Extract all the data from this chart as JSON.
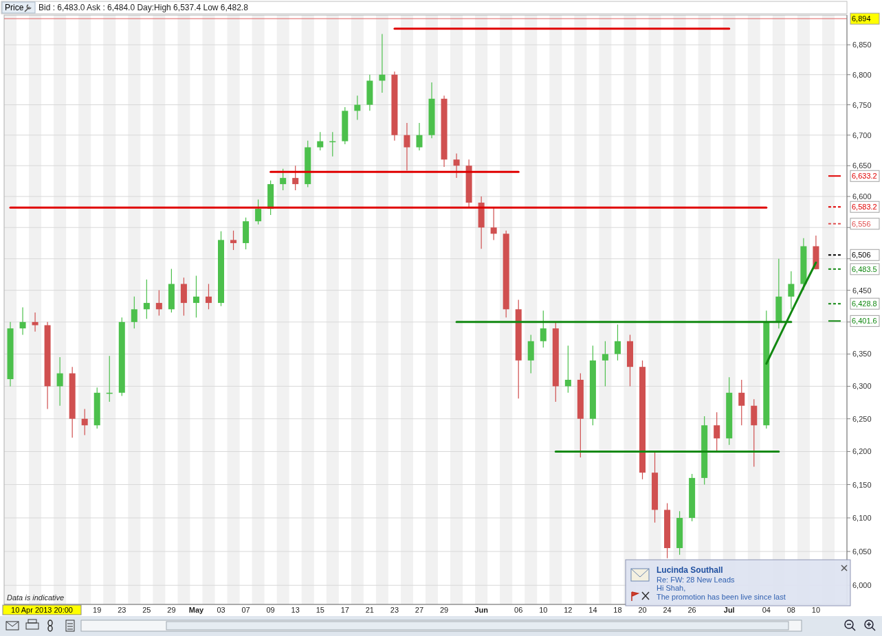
{
  "chart_data": {
    "type": "candlestick",
    "annotations": [
      "Price",
      "Bid : 6,483.0 Ask : 6,484.0 Day:High 6,537.4 Low 6,482.8",
      "Data is indicative",
      "Lucinda Southall",
      "Re: FW: 28 New Leads",
      "Hi Shah,",
      "The promotion has been live since last",
      "10 Apr 2013 20:00",
      "6,633.2",
      "6,583.2",
      "6,556",
      "6,506",
      "6,483.5",
      "6,428.8",
      "6,401.6"
    ],
    "log": true,
    "ylim": [
      5972,
      6900
    ],
    "categories": [
      null,
      null,
      null,
      null,
      null,
      null,
      null,
      "19",
      null,
      "23",
      null,
      "25",
      null,
      "29",
      null,
      "May",
      null,
      "03",
      null,
      "07",
      null,
      "09",
      null,
      "13",
      null,
      "15",
      null,
      "17",
      null,
      "21",
      null,
      "23",
      null,
      "27",
      null,
      "29",
      null,
      null,
      "Jun",
      null,
      null,
      "06",
      null,
      "10",
      null,
      "12",
      null,
      "14",
      null,
      "18",
      null,
      "20",
      null,
      "24",
      null,
      "26",
      null,
      null,
      "Jul",
      null,
      null,
      "04",
      null,
      "08",
      null,
      "10",
      null,
      null
    ],
    "yticks": [
      {
        "value": 6000,
        "label": "6,000"
      },
      {
        "value": 6050,
        "label": "6,050"
      },
      {
        "value": 6100,
        "label": "6,100"
      },
      {
        "value": 6150,
        "label": "6,150"
      },
      {
        "value": 6200,
        "label": "6,200"
      },
      {
        "value": 6250,
        "label": "6,250"
      },
      {
        "value": 6300,
        "label": "6,300"
      },
      {
        "value": 6350,
        "label": "6,350"
      },
      {
        "value": 6400,
        "label": null
      },
      {
        "value": 6450,
        "label": "6,450"
      },
      {
        "value": 6500,
        "label": null
      },
      {
        "value": 6550,
        "label": null
      },
      {
        "value": 6600,
        "label": "6,600"
      },
      {
        "value": 6650,
        "label": "6,650"
      },
      {
        "value": 6700,
        "label": "6,700"
      },
      {
        "value": 6750,
        "label": "6,750"
      },
      {
        "value": 6800,
        "label": "6,800"
      },
      {
        "value": 6850,
        "label": "6,850"
      }
    ],
    "grid": "y",
    "legend": false,
    "ref_lines": [
      {
        "axis": "y",
        "value": 6894,
        "label": "6,894",
        "color": "#e06060"
      }
    ],
    "series": [
      {
        "ohlc": [
          [
            6311,
            6400,
            6300,
            6390
          ],
          [
            6390,
            6423,
            6380,
            6400
          ],
          [
            6400,
            6415,
            6385,
            6395
          ],
          [
            6395,
            6400,
            6265,
            6300
          ],
          [
            6300,
            6345,
            6270,
            6320
          ],
          [
            6320,
            6330,
            6221,
            6250
          ],
          [
            6250,
            6265,
            6225,
            6240
          ],
          [
            6240,
            6298,
            6235,
            6290
          ],
          [
            6290,
            6347,
            6276,
            6290
          ],
          [
            6290,
            6407,
            6285,
            6400
          ],
          [
            6400,
            6440,
            6390,
            6420
          ],
          [
            6420,
            6467,
            6405,
            6430
          ],
          [
            6430,
            6450,
            6410,
            6420
          ],
          [
            6420,
            6484,
            6415,
            6460
          ],
          [
            6460,
            6470,
            6410,
            6430
          ],
          [
            6430,
            6473,
            6407,
            6440
          ],
          [
            6440,
            6460,
            6420,
            6430
          ],
          [
            6430,
            6544,
            6425,
            6530
          ],
          [
            6530,
            6545,
            6514,
            6525
          ],
          [
            6525,
            6566,
            6515,
            6560
          ],
          [
            6560,
            6595,
            6555,
            6580
          ],
          [
            6580,
            6626,
            6570,
            6620
          ],
          [
            6620,
            6645,
            6610,
            6630
          ],
          [
            6630,
            6650,
            6610,
            6620
          ],
          [
            6620,
            6691,
            6615,
            6680
          ],
          [
            6680,
            6705,
            6675,
            6690
          ],
          [
            6690,
            6705,
            6665,
            6690
          ],
          [
            6690,
            6746,
            6685,
            6740
          ],
          [
            6740,
            6765,
            6725,
            6750
          ],
          [
            6750,
            6800,
            6740,
            6790
          ],
          [
            6790,
            6868,
            6770,
            6800
          ],
          [
            6800,
            6805,
            6691,
            6700
          ],
          [
            6700,
            6720,
            6642,
            6680
          ],
          [
            6680,
            6720,
            6675,
            6700
          ],
          [
            6700,
            6787,
            6695,
            6760
          ],
          [
            6760,
            6765,
            6648,
            6660
          ],
          [
            6660,
            6670,
            6630,
            6650
          ],
          [
            6650,
            6660,
            6582,
            6590
          ],
          [
            6590,
            6600,
            6516,
            6550
          ],
          [
            6550,
            6582,
            6530,
            6540
          ],
          [
            6540,
            6545,
            6407,
            6420
          ],
          [
            6420,
            6435,
            6281,
            6340
          ],
          [
            6340,
            6380,
            6320,
            6370
          ],
          [
            6370,
            6418,
            6360,
            6390
          ],
          [
            6390,
            6400,
            6276,
            6300
          ],
          [
            6300,
            6363,
            6290,
            6310
          ],
          [
            6310,
            6320,
            6191,
            6250
          ],
          [
            6250,
            6363,
            6240,
            6340
          ],
          [
            6340,
            6370,
            6300,
            6350
          ],
          [
            6350,
            6396,
            6340,
            6370
          ],
          [
            6370,
            6380,
            6300,
            6330
          ],
          [
            6330,
            6340,
            6158,
            6168
          ],
          [
            6168,
            6200,
            6093,
            6112
          ],
          [
            6112,
            6122,
            6040,
            6055
          ],
          [
            6055,
            6110,
            6045,
            6100
          ],
          [
            6100,
            6166,
            6095,
            6160
          ],
          [
            6160,
            6254,
            6150,
            6240
          ],
          [
            6240,
            6260,
            6200,
            6220
          ],
          [
            6220,
            6314,
            6210,
            6290
          ],
          [
            6290,
            6310,
            6240,
            6270
          ],
          [
            6270,
            6280,
            6177,
            6240
          ],
          [
            6240,
            6418,
            6235,
            6400
          ],
          [
            6400,
            6500,
            6390,
            6440
          ],
          [
            6440,
            6480,
            6420,
            6460
          ],
          [
            6460,
            6533,
            6450,
            6520
          ],
          [
            6520,
            6537,
            6483,
            6483.5
          ],
          null,
          null
        ],
        "colors": [
          "#4cc04c",
          "#4cc04c",
          "#d05050",
          "#d05050",
          "#4cc04c",
          "#d05050",
          "#d05050",
          "#4cc04c",
          "#4cc04c",
          "#4cc04c",
          "#4cc04c",
          "#4cc04c",
          "#d05050",
          "#4cc04c",
          "#d05050",
          "#4cc04c",
          "#d05050",
          "#4cc04c",
          "#d05050",
          "#4cc04c",
          "#4cc04c",
          "#4cc04c",
          "#4cc04c",
          "#d05050",
          "#4cc04c",
          "#4cc04c",
          "#4cc04c",
          "#4cc04c",
          "#4cc04c",
          "#4cc04c",
          "#4cc04c",
          "#d05050",
          "#d05050",
          "#4cc04c",
          "#4cc04c",
          "#d05050",
          "#d05050",
          "#d05050",
          "#d05050",
          "#d05050",
          "#d05050",
          "#d05050",
          "#4cc04c",
          "#4cc04c",
          "#d05050",
          "#4cc04c",
          "#d05050",
          "#4cc04c",
          "#4cc04c",
          "#4cc04c",
          "#d05050",
          "#d05050",
          "#d05050",
          "#d05050",
          "#4cc04c",
          "#4cc04c",
          "#4cc04c",
          "#d05050",
          "#4cc04c",
          "#d05050",
          "#d05050",
          "#4cc04c",
          "#4cc04c",
          "#4cc04c",
          "#4cc04c",
          "#d05050",
          null,
          null
        ]
      },
      {
        "type": "line",
        "color": "#e00000",
        "values": [
          null,
          null,
          null,
          null,
          null,
          null,
          null,
          null,
          null,
          null,
          null,
          null,
          null,
          null,
          null,
          null,
          null,
          null,
          null,
          null,
          null,
          null,
          null,
          null,
          null,
          null,
          null,
          null,
          null,
          null,
          null,
          6877,
          6877,
          6877,
          6877,
          6877,
          6877,
          6877,
          6877,
          6877,
          6877,
          6877,
          6877,
          6877,
          6877,
          6877,
          6877,
          6877,
          6877,
          6877,
          6877,
          6877,
          6877,
          6877,
          6877,
          6877,
          6877,
          6877,
          6877,
          null,
          null,
          null,
          null,
          null,
          null,
          null,
          null,
          null
        ]
      },
      {
        "type": "line",
        "color": "#e00000",
        "values": [
          null,
          null,
          null,
          null,
          null,
          null,
          null,
          null,
          null,
          null,
          null,
          null,
          null,
          null,
          null,
          null,
          null,
          null,
          null,
          null,
          null,
          6640,
          6640,
          6640,
          6640,
          6640,
          6640,
          6640,
          6640,
          6640,
          6640,
          6640,
          6640,
          6640,
          6640,
          6640,
          6640,
          6640,
          6640,
          6640,
          6640,
          6640,
          null,
          null,
          null,
          null,
          null,
          null,
          null,
          null,
          null,
          null,
          null,
          null,
          null,
          null,
          null,
          null,
          null,
          null,
          null,
          null,
          null,
          null,
          null,
          null,
          null,
          null
        ]
      },
      {
        "type": "line",
        "color": "#e00000",
        "values": [
          6582,
          6582,
          6582,
          6582,
          6582,
          6582,
          6582,
          6582,
          6582,
          6582,
          6582,
          6582,
          6582,
          6582,
          6582,
          6582,
          6582,
          6582,
          6582,
          6582,
          6582,
          6582,
          6582,
          6582,
          6582,
          6582,
          6582,
          6582,
          6582,
          6582,
          6582,
          6582,
          6582,
          6582,
          6582,
          6582,
          6582,
          6582,
          6582,
          6582,
          6582,
          6582,
          6582,
          6582,
          6582,
          6582,
          6582,
          6582,
          6582,
          6582,
          6582,
          6582,
          6582,
          6582,
          6582,
          6582,
          6582,
          6582,
          6582,
          6582,
          6582,
          6582,
          null,
          null,
          null,
          null,
          null,
          null
        ]
      },
      {
        "type": "line",
        "color": "#118811",
        "values": [
          null,
          null,
          null,
          null,
          null,
          null,
          null,
          null,
          null,
          null,
          null,
          null,
          null,
          null,
          null,
          null,
          null,
          null,
          null,
          null,
          null,
          null,
          null,
          null,
          null,
          null,
          null,
          null,
          null,
          null,
          null,
          null,
          null,
          null,
          null,
          null,
          6400,
          6400,
          6400,
          6400,
          6400,
          6400,
          6400,
          6400,
          6400,
          6400,
          6400,
          6400,
          6400,
          6400,
          6400,
          6400,
          6400,
          6400,
          6400,
          6400,
          6400,
          6400,
          6400,
          6400,
          6400,
          6400,
          6400,
          6400,
          null,
          null,
          null,
          null
        ]
      },
      {
        "type": "line",
        "color": "#118811",
        "values": [
          null,
          null,
          null,
          null,
          null,
          null,
          null,
          null,
          null,
          null,
          null,
          null,
          null,
          null,
          null,
          null,
          null,
          null,
          null,
          null,
          null,
          null,
          null,
          null,
          null,
          null,
          null,
          null,
          null,
          null,
          null,
          null,
          null,
          null,
          null,
          null,
          null,
          null,
          null,
          null,
          null,
          null,
          null,
          null,
          6200,
          6200,
          6200,
          6200,
          6200,
          6200,
          6200,
          6200,
          6200,
          6200,
          6200,
          6200,
          6200,
          6200,
          6200,
          6200,
          6200,
          6200,
          6200,
          null,
          null,
          null,
          null,
          null
        ]
      },
      {
        "type": "line",
        "color": "#118811",
        "values": [
          null,
          null,
          null,
          null,
          null,
          null,
          null,
          null,
          null,
          null,
          null,
          null,
          null,
          null,
          null,
          null,
          null,
          null,
          null,
          null,
          null,
          null,
          null,
          null,
          null,
          null,
          null,
          null,
          null,
          null,
          null,
          null,
          null,
          null,
          null,
          null,
          null,
          null,
          null,
          null,
          null,
          null,
          null,
          null,
          null,
          null,
          null,
          null,
          null,
          null,
          null,
          null,
          null,
          null,
          null,
          null,
          null,
          null,
          null,
          null,
          null,
          6335,
          6375,
          6415,
          6455,
          6494,
          null,
          null
        ]
      },
      {
        "type": "line",
        "color": "#e00000",
        "line_style": "solid",
        "values": [
          null,
          null,
          null,
          null,
          null,
          null,
          null,
          null,
          null,
          null,
          null,
          null,
          null,
          null,
          null,
          null,
          null,
          null,
          null,
          null,
          null,
          null,
          null,
          null,
          null,
          null,
          null,
          null,
          null,
          null,
          null,
          null,
          null,
          null,
          null,
          null,
          null,
          null,
          null,
          null,
          null,
          null,
          null,
          null,
          null,
          null,
          null,
          null,
          null,
          null,
          null,
          null,
          null,
          null,
          null,
          null,
          null,
          null,
          null,
          null,
          null,
          null,
          null,
          null,
          null,
          null,
          6633.2,
          6633.2
        ]
      },
      {
        "type": "line",
        "color": "#e00000",
        "line_style": "dashed",
        "values": [
          null,
          null,
          null,
          null,
          null,
          null,
          null,
          null,
          null,
          null,
          null,
          null,
          null,
          null,
          null,
          null,
          null,
          null,
          null,
          null,
          null,
          null,
          null,
          null,
          null,
          null,
          null,
          null,
          null,
          null,
          null,
          null,
          null,
          null,
          null,
          null,
          null,
          null,
          null,
          null,
          null,
          null,
          null,
          null,
          null,
          null,
          null,
          null,
          null,
          null,
          null,
          null,
          null,
          null,
          null,
          null,
          null,
          null,
          null,
          null,
          null,
          null,
          null,
          null,
          null,
          null,
          6583.2,
          6583.2
        ]
      },
      {
        "type": "line",
        "color": "#e05050",
        "line_style": "dashed",
        "values": [
          null,
          null,
          null,
          null,
          null,
          null,
          null,
          null,
          null,
          null,
          null,
          null,
          null,
          null,
          null,
          null,
          null,
          null,
          null,
          null,
          null,
          null,
          null,
          null,
          null,
          null,
          null,
          null,
          null,
          null,
          null,
          null,
          null,
          null,
          null,
          null,
          null,
          null,
          null,
          null,
          null,
          null,
          null,
          null,
          null,
          null,
          null,
          null,
          null,
          null,
          null,
          null,
          null,
          null,
          null,
          null,
          null,
          null,
          null,
          null,
          null,
          null,
          null,
          null,
          null,
          null,
          6556,
          6556
        ]
      },
      {
        "type": "line",
        "color": "#000000",
        "line_style": "dashed",
        "values": [
          null,
          null,
          null,
          null,
          null,
          null,
          null,
          null,
          null,
          null,
          null,
          null,
          null,
          null,
          null,
          null,
          null,
          null,
          null,
          null,
          null,
          null,
          null,
          null,
          null,
          null,
          null,
          null,
          null,
          null,
          null,
          null,
          null,
          null,
          null,
          null,
          null,
          null,
          null,
          null,
          null,
          null,
          null,
          null,
          null,
          null,
          null,
          null,
          null,
          null,
          null,
          null,
          null,
          null,
          null,
          null,
          null,
          null,
          null,
          null,
          null,
          null,
          null,
          null,
          null,
          null,
          6506,
          6506
        ]
      },
      {
        "type": "line",
        "color": "#118811",
        "line_style": "dashed",
        "values": [
          null,
          null,
          null,
          null,
          null,
          null,
          null,
          null,
          null,
          null,
          null,
          null,
          null,
          null,
          null,
          null,
          null,
          null,
          null,
          null,
          null,
          null,
          null,
          null,
          null,
          null,
          null,
          null,
          null,
          null,
          null,
          null,
          null,
          null,
          null,
          null,
          null,
          null,
          null,
          null,
          null,
          null,
          null,
          null,
          null,
          null,
          null,
          null,
          null,
          null,
          null,
          null,
          null,
          null,
          null,
          null,
          null,
          null,
          null,
          null,
          null,
          null,
          null,
          null,
          null,
          null,
          6483.5,
          6483.5
        ]
      },
      {
        "type": "line",
        "color": "#118811",
        "line_style": "dashed",
        "values": [
          null,
          null,
          null,
          null,
          null,
          null,
          null,
          null,
          null,
          null,
          null,
          null,
          null,
          null,
          null,
          null,
          null,
          null,
          null,
          null,
          null,
          null,
          null,
          null,
          null,
          null,
          null,
          null,
          null,
          null,
          null,
          null,
          null,
          null,
          null,
          null,
          null,
          null,
          null,
          null,
          null,
          null,
          null,
          null,
          null,
          null,
          null,
          null,
          null,
          null,
          null,
          null,
          null,
          null,
          null,
          null,
          null,
          null,
          null,
          null,
          null,
          null,
          null,
          null,
          null,
          null,
          6428.8,
          6428.8
        ]
      },
      {
        "type": "line",
        "color": "#118811",
        "line_style": "solid",
        "values": [
          null,
          null,
          null,
          null,
          null,
          null,
          null,
          null,
          null,
          null,
          null,
          null,
          null,
          null,
          null,
          null,
          null,
          null,
          null,
          null,
          null,
          null,
          null,
          null,
          null,
          null,
          null,
          null,
          null,
          null,
          null,
          null,
          null,
          null,
          null,
          null,
          null,
          null,
          null,
          null,
          null,
          null,
          null,
          null,
          null,
          null,
          null,
          null,
          null,
          null,
          null,
          null,
          null,
          null,
          null,
          null,
          null,
          null,
          null,
          null,
          null,
          null,
          null,
          null,
          null,
          null,
          6401.6,
          6401.6
        ]
      }
    ]
  }
}
